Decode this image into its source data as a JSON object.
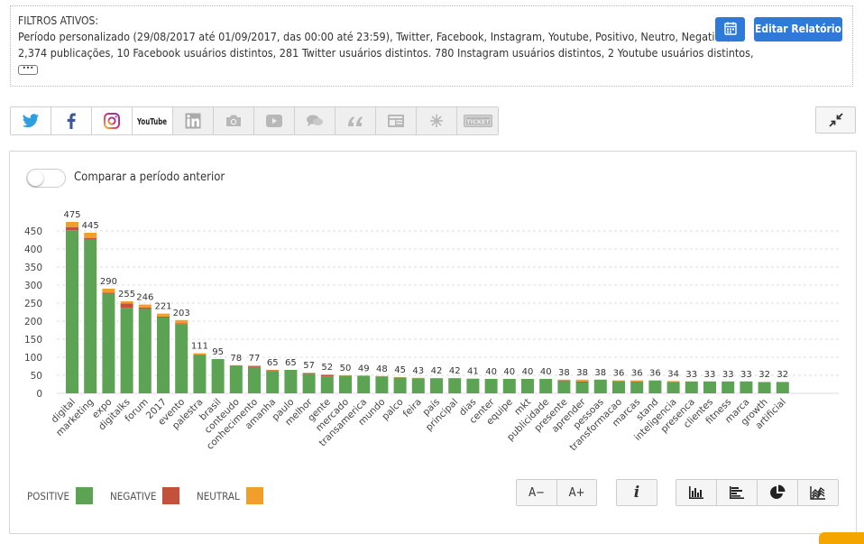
{
  "filters": {
    "title": "FILTROS ATIVOS:",
    "line1": "Período personalizado (29/08/2017 até 01/09/2017, das 00:00 até 23:59), Twitter, Facebook, Instagram, Youtube, Positivo, Neutro, Negativo,",
    "line2": "2,374 publicações, 10 Facebook usuários distintos, 281 Twitter usuários distintos. 780 Instagram usuários distintos, 2 Youtube usuários distintos,",
    "more_label": "•••"
  },
  "toolbar": {
    "calendar_icon": "calendar-icon",
    "edit_label": "Editar Relatório",
    "collapse_icon": "collapse-icon"
  },
  "sources": [
    {
      "name": "twitter",
      "active": true
    },
    {
      "name": "facebook",
      "active": true
    },
    {
      "name": "instagram",
      "active": true
    },
    {
      "name": "youtube",
      "active": true
    },
    {
      "name": "linkedin",
      "active": false
    },
    {
      "name": "camera",
      "active": false
    },
    {
      "name": "video",
      "active": false
    },
    {
      "name": "chat",
      "active": false
    },
    {
      "name": "quote",
      "active": false
    },
    {
      "name": "news",
      "active": false
    },
    {
      "name": "sparkle",
      "active": false
    },
    {
      "name": "ticket",
      "active": false
    }
  ],
  "youtube_label": "YouTube",
  "ticket_label": "TICKET",
  "compare": {
    "label": "Comparar a período anterior",
    "enabled": false
  },
  "colors": {
    "positive": "#5ca353",
    "negative": "#c4523a",
    "neutral": "#f0a02a",
    "accent": "#2f7ad8"
  },
  "legend": [
    {
      "label": "POSITIVE",
      "color": "#5ca353"
    },
    {
      "label": "NEGATIVE",
      "color": "#c4523a"
    },
    {
      "label": "NEUTRAL",
      "color": "#f0a02a"
    }
  ],
  "controls": {
    "font_down": "A−",
    "font_up": "A+",
    "info": "i",
    "views": [
      "bar-chart-icon",
      "horizontal-bar-icon",
      "pie-chart-icon",
      "area-chart-icon"
    ]
  },
  "chart_data": {
    "type": "bar",
    "stacked": true,
    "ylim": [
      0,
      475
    ],
    "yticks": [
      0,
      50,
      100,
      150,
      200,
      250,
      300,
      350,
      400,
      450
    ],
    "grid": true,
    "categories": [
      "digital",
      "marketing",
      "expo",
      "digitalks",
      "forum",
      "2017",
      "evento",
      "palestra",
      "brasil",
      "conteudo",
      "conhecimento",
      "amanha",
      "paulo",
      "melhor",
      "gente",
      "mercado",
      "transamerica",
      "mundo",
      "palco",
      "feira",
      "país",
      "principal",
      "dias",
      "center",
      "equipe",
      "mkt",
      "publicidade",
      "presente",
      "aprender",
      "pessoas",
      "transformacao",
      "marcas",
      "stand",
      "inteligencia",
      "presenca",
      "clientes",
      "fitness",
      "marca",
      "growth",
      "artificial"
    ],
    "totals": [
      475,
      445,
      290,
      255,
      246,
      221,
      203,
      111,
      95,
      78,
      77,
      65,
      65,
      57,
      52,
      50,
      49,
      48,
      45,
      43,
      42,
      42,
      41,
      40,
      40,
      40,
      40,
      38,
      38,
      38,
      36,
      36,
      36,
      34,
      33,
      33,
      33,
      33,
      32,
      32
    ],
    "series": [
      {
        "name": "POSITIVE",
        "values": [
          452,
          426,
          276,
          237,
          234,
          210,
          192,
          105,
          95,
          75,
          73,
          62,
          65,
          54,
          47,
          49,
          49,
          47,
          44,
          42,
          42,
          42,
          40,
          40,
          40,
          40,
          40,
          34,
          30,
          38,
          34,
          31,
          35,
          32,
          33,
          33,
          33,
          33,
          30,
          31
        ]
      },
      {
        "name": "NEGATIVE",
        "values": [
          8,
          4,
          3,
          12,
          4,
          3,
          2,
          2,
          0,
          2,
          2,
          2,
          0,
          2,
          4,
          0,
          0,
          0,
          0,
          0,
          0,
          0,
          0,
          0,
          0,
          0,
          0,
          2,
          3,
          0,
          0,
          2,
          0,
          0,
          0,
          0,
          0,
          0,
          0,
          0
        ]
      },
      {
        "name": "NEUTRAL",
        "values": [
          15,
          15,
          11,
          6,
          8,
          8,
          9,
          4,
          0,
          1,
          2,
          1,
          0,
          1,
          1,
          1,
          0,
          1,
          1,
          1,
          0,
          0,
          1,
          0,
          0,
          0,
          0,
          2,
          5,
          0,
          2,
          3,
          1,
          2,
          0,
          0,
          0,
          0,
          2,
          1
        ]
      }
    ]
  }
}
